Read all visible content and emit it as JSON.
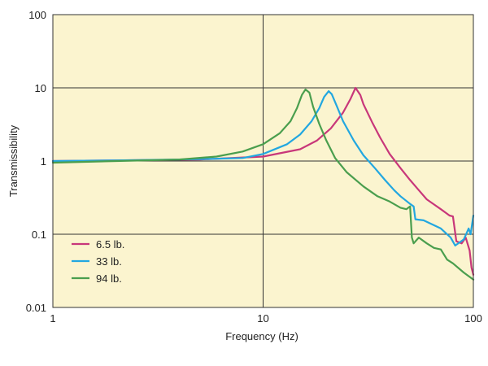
{
  "chart_data": {
    "type": "line",
    "title": "",
    "xlabel": "Frequency (Hz)",
    "ylabel": "Transmissibility",
    "xscale": "log",
    "yscale": "log",
    "xlim": [
      1,
      100
    ],
    "ylim": [
      0.01,
      100
    ],
    "x_ticks": [
      {
        "value": 1,
        "label": "1"
      },
      {
        "value": 10,
        "label": "10"
      },
      {
        "value": 100,
        "label": "100"
      }
    ],
    "y_ticks": [
      {
        "value": 100,
        "label": "100"
      },
      {
        "value": 10,
        "label": "10"
      },
      {
        "value": 1,
        "label": "1"
      },
      {
        "value": 0.1,
        "label": "0.1"
      },
      {
        "value": 0.01,
        "label": "0.01"
      }
    ],
    "grid": true,
    "plot_background": "#fbf4cf",
    "legend_position": "bottom-left",
    "series": [
      {
        "name": "6.5 lb.",
        "color": "#c8377a",
        "points": [
          [
            1,
            1.0
          ],
          [
            2,
            1.02
          ],
          [
            5,
            1.05
          ],
          [
            10,
            1.15
          ],
          [
            15,
            1.45
          ],
          [
            18,
            1.9
          ],
          [
            21,
            2.8
          ],
          [
            24,
            4.6
          ],
          [
            26,
            7.0
          ],
          [
            27.5,
            10.0
          ],
          [
            29,
            8.0
          ],
          [
            30,
            6.0
          ],
          [
            33,
            3.4
          ],
          [
            36,
            2.1
          ],
          [
            40,
            1.25
          ],
          [
            45,
            0.8
          ],
          [
            50,
            0.55
          ],
          [
            55,
            0.4
          ],
          [
            60,
            0.3
          ],
          [
            70,
            0.22
          ],
          [
            77,
            0.18
          ],
          [
            80,
            0.175
          ],
          [
            83,
            0.08
          ],
          [
            88,
            0.075
          ],
          [
            92,
            0.09
          ],
          [
            96,
            0.06
          ],
          [
            98,
            0.035
          ],
          [
            100,
            0.028
          ]
        ]
      },
      {
        "name": "33 lb.",
        "color": "#22a7e0",
        "points": [
          [
            1,
            1.0
          ],
          [
            2,
            1.02
          ],
          [
            5,
            1.06
          ],
          [
            8,
            1.1
          ],
          [
            10,
            1.25
          ],
          [
            13,
            1.7
          ],
          [
            15,
            2.3
          ],
          [
            17,
            3.5
          ],
          [
            18.5,
            5.3
          ],
          [
            19.5,
            7.5
          ],
          [
            20.5,
            9.0
          ],
          [
            21.2,
            8.2
          ],
          [
            22.5,
            5.5
          ],
          [
            24,
            3.5
          ],
          [
            27,
            1.9
          ],
          [
            30,
            1.2
          ],
          [
            34,
            0.8
          ],
          [
            38,
            0.55
          ],
          [
            42,
            0.4
          ],
          [
            45,
            0.33
          ],
          [
            50,
            0.26
          ],
          [
            52,
            0.24
          ],
          [
            53,
            0.16
          ],
          [
            58,
            0.155
          ],
          [
            70,
            0.12
          ],
          [
            78,
            0.09
          ],
          [
            82,
            0.07
          ],
          [
            90,
            0.085
          ],
          [
            95,
            0.12
          ],
          [
            97,
            0.1
          ],
          [
            100,
            0.18
          ]
        ]
      },
      {
        "name": "94 lb.",
        "color": "#4a9e4e",
        "points": [
          [
            1,
            0.95
          ],
          [
            2,
            1.0
          ],
          [
            4,
            1.05
          ],
          [
            6,
            1.15
          ],
          [
            8,
            1.35
          ],
          [
            10,
            1.7
          ],
          [
            12,
            2.4
          ],
          [
            13.5,
            3.5
          ],
          [
            14.5,
            5.3
          ],
          [
            15.3,
            8.0
          ],
          [
            15.9,
            9.5
          ],
          [
            16.6,
            8.6
          ],
          [
            17.3,
            5.5
          ],
          [
            18.5,
            3.2
          ],
          [
            20,
            1.9
          ],
          [
            22,
            1.1
          ],
          [
            25,
            0.7
          ],
          [
            30,
            0.45
          ],
          [
            35,
            0.33
          ],
          [
            40,
            0.28
          ],
          [
            45,
            0.23
          ],
          [
            48,
            0.22
          ],
          [
            50,
            0.24
          ],
          [
            51,
            0.09
          ],
          [
            52,
            0.075
          ],
          [
            55,
            0.09
          ],
          [
            60,
            0.075
          ],
          [
            65,
            0.065
          ],
          [
            70,
            0.062
          ],
          [
            75,
            0.045
          ],
          [
            80,
            0.04
          ],
          [
            90,
            0.03
          ],
          [
            100,
            0.024
          ]
        ]
      }
    ]
  }
}
